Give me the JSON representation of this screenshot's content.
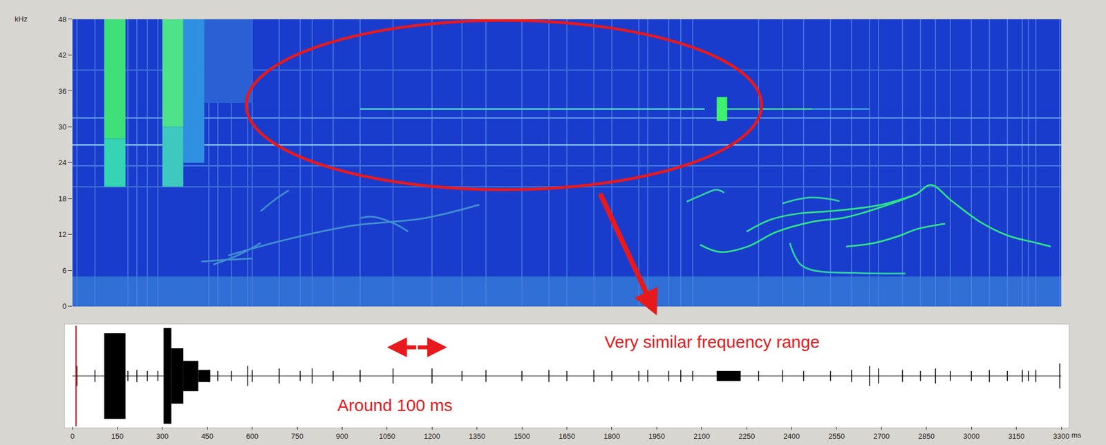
{
  "chart_data": {
    "type": "spectrogram",
    "xlabel": "ms",
    "ylabel": "kHz",
    "xlim": [
      0,
      3300
    ],
    "xticks": [
      0,
      150,
      300,
      450,
      600,
      750,
      900,
      1050,
      1200,
      1350,
      1500,
      1650,
      1800,
      1950,
      2100,
      2250,
      2400,
      2550,
      2700,
      2850,
      3000,
      3150,
      3300
    ],
    "ylim": [
      0,
      48
    ],
    "yticks": [
      0,
      6,
      12,
      18,
      24,
      30,
      36,
      42,
      48
    ],
    "grid": false,
    "spectrogram": {
      "noise_band": {
        "y": [
          0,
          5
        ],
        "color": "#2f6fd6"
      },
      "bands": [
        {
          "start": 106,
          "end": 177,
          "low": 28,
          "high": 48,
          "color": "#3fe07a"
        },
        {
          "start": 106,
          "end": 177,
          "low": 20,
          "high": 28,
          "color": "#34d4b4"
        },
        {
          "start": 300,
          "end": 370,
          "low": 30,
          "high": 48,
          "color": "#4ee28a"
        },
        {
          "start": 300,
          "end": 370,
          "low": 20,
          "high": 30,
          "color": "#3ec8c0"
        },
        {
          "start": 370,
          "end": 440,
          "low": 24,
          "high": 48,
          "color": "#2f8fe0"
        },
        {
          "start": 440,
          "end": 600,
          "low": 34,
          "high": 48,
          "color": "#2a60d4"
        },
        {
          "start": 2150,
          "end": 2185,
          "low": 31,
          "high": 35,
          "color": "#40f070"
        }
      ],
      "tones": [
        {
          "freq": 27,
          "start": 0,
          "end": 3300,
          "color": "#86c8f2"
        },
        {
          "freq": 31.5,
          "start": 0,
          "end": 3300,
          "color": "#5b98e8"
        },
        {
          "freq": 23.5,
          "start": 0,
          "end": 3300,
          "color": "#3f74dc"
        },
        {
          "freq": 20,
          "start": 0,
          "end": 3300,
          "color": "#3a6cd8"
        },
        {
          "freq": 39.5,
          "start": 0,
          "end": 3300,
          "color": "#3a6cd8"
        },
        {
          "freq": 33,
          "start": 960,
          "end": 2110,
          "color": "#50d8c0"
        },
        {
          "freq": 33,
          "start": 2150,
          "end": 2470,
          "color": "#40e090"
        },
        {
          "freq": 33,
          "start": 2470,
          "end": 2660,
          "color": "#3fa8d8"
        }
      ],
      "contours": [
        {
          "color": "#2fe08c",
          "x": [
            2095,
            2160,
            2253,
            2347,
            2465,
            2582,
            2723,
            2817,
            2865,
            2935,
            3030,
            3124,
            3218,
            3265
          ],
          "y": [
            10.3,
            9.1,
            10,
            12.4,
            14.1,
            14.9,
            17,
            18.8,
            20.3,
            17.6,
            14.1,
            11.8,
            10.6,
            10
          ]
        },
        {
          "color": "#2fe08c",
          "x": [
            2250,
            2330,
            2420,
            2550,
            2700,
            2820
          ],
          "y": [
            12.5,
            14.5,
            15.5,
            16,
            17,
            18.8
          ]
        },
        {
          "color": "#2fd0a0",
          "x": [
            2050,
            2100,
            2150,
            2175
          ],
          "y": [
            17.5,
            18.6,
            19.5,
            19
          ]
        },
        {
          "color": "#2fd0a0",
          "x": [
            2370,
            2420,
            2465,
            2520,
            2560
          ],
          "y": [
            17.2,
            17.9,
            18.2,
            18,
            17.6
          ]
        },
        {
          "color": "#2fd0a0",
          "x": [
            2394,
            2410,
            2430,
            2460,
            2500,
            2600,
            2700,
            2780
          ],
          "y": [
            10.6,
            8.5,
            7,
            6.2,
            5.8,
            5.6,
            5.5,
            5.5
          ]
        },
        {
          "color": "#2fe08c",
          "x": [
            2582,
            2676,
            2760,
            2817,
            2912
          ],
          "y": [
            10,
            10.6,
            11.8,
            12.9,
            13.8
          ]
        },
        {
          "color": "#3f8fd0",
          "x": [
            470,
            550,
            628
          ],
          "y": [
            7,
            8.5,
            10.6
          ]
        },
        {
          "color": "#3f8fd0",
          "x": [
            628,
            680,
            722
          ],
          "y": [
            15.9,
            18,
            19.4
          ]
        },
        {
          "color": "#3f8fd0",
          "x": [
            520,
            700,
            935,
            1170,
            1358
          ],
          "y": [
            8.5,
            11,
            13.5,
            14.7,
            17
          ]
        },
        {
          "color": "#3f8fd0",
          "x": [
            958,
            1000,
            1076,
            1120
          ],
          "y": [
            14.7,
            15,
            13.8,
            12.5
          ]
        },
        {
          "color": "#3f8fd0",
          "x": [
            430,
            520,
            600
          ],
          "y": [
            7.5,
            7.8,
            8
          ]
        }
      ]
    },
    "clicks": [
      {
        "t": 15,
        "amp": 0.2
      },
      {
        "t": 75,
        "amp": 0.12
      },
      {
        "t": 185,
        "amp": 0.1
      },
      {
        "t": 215,
        "amp": 0.12
      },
      {
        "t": 250,
        "amp": 0.1
      },
      {
        "t": 285,
        "amp": 0.1
      },
      {
        "t": 455,
        "amp": 0.12
      },
      {
        "t": 485,
        "amp": 0.1
      },
      {
        "t": 530,
        "amp": 0.1
      },
      {
        "t": 585,
        "amp": 0.2
      },
      {
        "t": 600,
        "amp": 0.12
      },
      {
        "t": 690,
        "amp": 0.15
      },
      {
        "t": 760,
        "amp": 0.1
      },
      {
        "t": 800,
        "amp": 0.15
      },
      {
        "t": 870,
        "amp": 0.1
      },
      {
        "t": 960,
        "amp": 0.12
      },
      {
        "t": 1070,
        "amp": 0.15
      },
      {
        "t": 1200,
        "amp": 0.15
      },
      {
        "t": 1300,
        "amp": 0.1
      },
      {
        "t": 1380,
        "amp": 0.12
      },
      {
        "t": 1500,
        "amp": 0.1
      },
      {
        "t": 1590,
        "amp": 0.12
      },
      {
        "t": 1650,
        "amp": 0.1
      },
      {
        "t": 1740,
        "amp": 0.12
      },
      {
        "t": 1800,
        "amp": 0.1
      },
      {
        "t": 1890,
        "amp": 0.1
      },
      {
        "t": 1920,
        "amp": 0.12
      },
      {
        "t": 1990,
        "amp": 0.1
      },
      {
        "t": 2030,
        "amp": 0.12
      },
      {
        "t": 2070,
        "amp": 0.1
      },
      {
        "t": 2290,
        "amp": 0.1
      },
      {
        "t": 2370,
        "amp": 0.12
      },
      {
        "t": 2440,
        "amp": 0.1
      },
      {
        "t": 2530,
        "amp": 0.1
      },
      {
        "t": 2600,
        "amp": 0.12
      },
      {
        "t": 2660,
        "amp": 0.2
      },
      {
        "t": 2690,
        "amp": 0.15
      },
      {
        "t": 2770,
        "amp": 0.12
      },
      {
        "t": 2830,
        "amp": 0.1
      },
      {
        "t": 2880,
        "amp": 0.15
      },
      {
        "t": 2930,
        "amp": 0.1
      },
      {
        "t": 3000,
        "amp": 0.1
      },
      {
        "t": 3060,
        "amp": 0.12
      },
      {
        "t": 3120,
        "amp": 0.1
      },
      {
        "t": 3170,
        "amp": 0.12
      },
      {
        "t": 3190,
        "amp": 0.1
      },
      {
        "t": 3215,
        "amp": 0.12
      },
      {
        "t": 3295,
        "amp": 0.25
      }
    ],
    "waveform": {
      "amp_lim": [
        -1,
        1
      ],
      "cursor": 12,
      "bursts": [
        {
          "start": 106,
          "end": 177,
          "amp": 0.85
        },
        {
          "start": 304,
          "end": 330,
          "amp": 0.95
        },
        {
          "start": 330,
          "end": 370,
          "amp": 0.55
        },
        {
          "start": 370,
          "end": 420,
          "amp": 0.3
        },
        {
          "start": 420,
          "end": 460,
          "amp": 0.12
        },
        {
          "start": 2150,
          "end": 2230,
          "amp": 0.1
        }
      ]
    },
    "annotations": [
      {
        "type": "ellipse",
        "x": [
          580,
          2300
        ],
        "y": [
          19.5,
          47.8
        ],
        "color": "#e8191d"
      },
      {
        "type": "arrow",
        "x": 1950,
        "y": -1.5,
        "tail_x": 1760,
        "tail_y": 19,
        "color": "#e8191d"
      },
      {
        "type": "double_arrow",
        "x": [
          1050,
          1250
        ],
        "amp": 0.57,
        "color": "#e8191d"
      },
      {
        "type": "text",
        "text": "Very similar frequency range",
        "x": 2135,
        "amp": 0.68,
        "color": "#e8191d"
      },
      {
        "type": "text",
        "text": "Around 100 ms",
        "x": 1076,
        "amp": -0.58,
        "color": "#e8191d"
      }
    ]
  }
}
